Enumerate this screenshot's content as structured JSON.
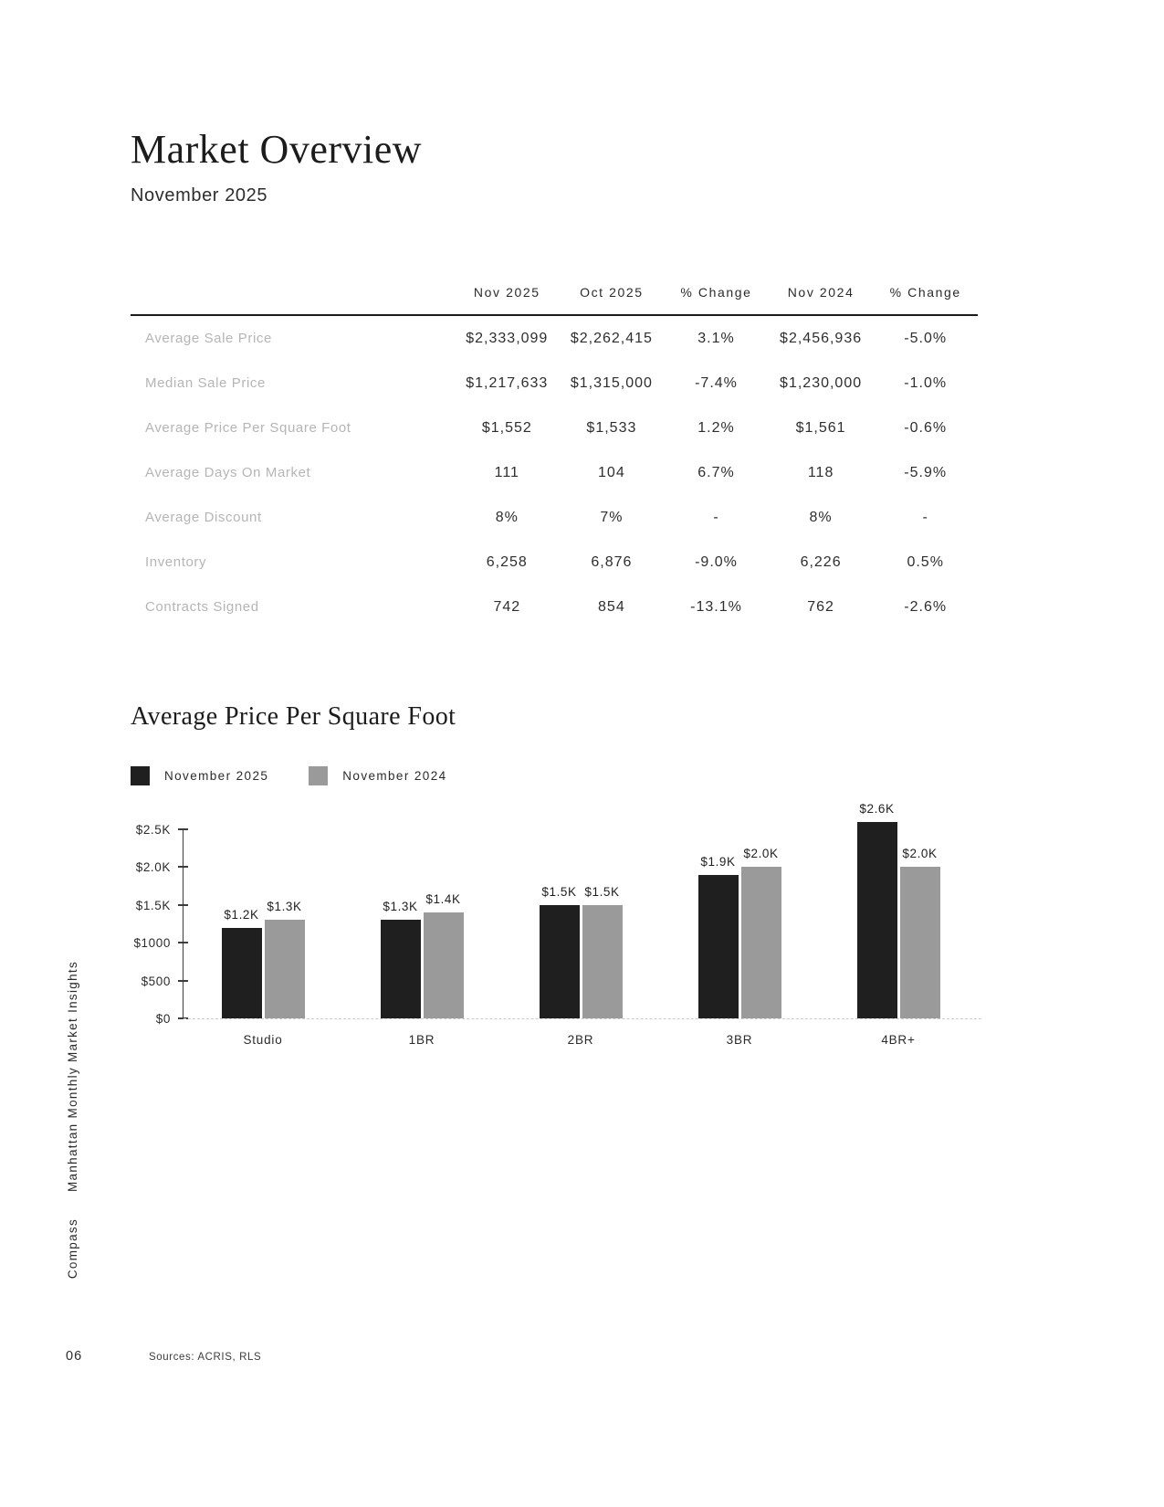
{
  "page": {
    "title": "Market Overview",
    "subtitle": "November 2025",
    "page_number": "06",
    "sources": "Sources: ACRIS, RLS",
    "sidebar_text": "Manhattan Monthly Market Insights",
    "brand": "Compass"
  },
  "table": {
    "columns": [
      "Nov 2025",
      "Oct 2025",
      "% Change",
      "Nov 2024",
      "% Change"
    ],
    "rows": [
      {
        "label": "Average Sale Price",
        "values": [
          "$2,333,099",
          "$2,262,415",
          "3.1%",
          "$2,456,936",
          "-5.0%"
        ]
      },
      {
        "label": "Median Sale Price",
        "values": [
          "$1,217,633",
          "$1,315,000",
          "-7.4%",
          "$1,230,000",
          "-1.0%"
        ]
      },
      {
        "label": "Average Price Per Square Foot",
        "values": [
          "$1,552",
          "$1,533",
          "1.2%",
          "$1,561",
          "-0.6%"
        ]
      },
      {
        "label": "Average Days On Market",
        "values": [
          "111",
          "104",
          "6.7%",
          "118",
          "-5.9%"
        ]
      },
      {
        "label": "Average Discount",
        "values": [
          "8%",
          "7%",
          "-",
          "8%",
          "-"
        ]
      },
      {
        "label": "Inventory",
        "values": [
          "6,258",
          "6,876",
          "-9.0%",
          "6,226",
          "0.5%"
        ]
      },
      {
        "label": "Contracts Signed",
        "values": [
          "742",
          "854",
          "-13.1%",
          "762",
          "-2.6%"
        ]
      }
    ]
  },
  "chart": {
    "title": "Average Price Per Square Foot",
    "chart_data": {
      "type": "bar",
      "categories": [
        "Studio",
        "1BR",
        "2BR",
        "3BR",
        "4BR+"
      ],
      "series": [
        {
          "name": "November 2025",
          "color": "#1f1f1f",
          "values": [
            1200,
            1300,
            1500,
            1900,
            2600
          ],
          "labels": [
            "$1.2K",
            "$1.3K",
            "$1.5K",
            "$1.9K",
            "$2.6K"
          ]
        },
        {
          "name": "November 2024",
          "color": "#9a9a9a",
          "values": [
            1300,
            1400,
            1500,
            2000,
            2000
          ],
          "labels": [
            "$1.3K",
            "$1.4K",
            "$1.5K",
            "$2.0K",
            "$2.0K"
          ]
        }
      ],
      "ytick_values": [
        0,
        500,
        1000,
        1500,
        2000,
        2500
      ],
      "ytick_labels": [
        "$0",
        "$500",
        "$1000",
        "$1.5K",
        "$2.0K",
        "$2.5K"
      ],
      "ylim": [
        0,
        2500
      ],
      "xlabel": "",
      "ylabel": "",
      "legend_position": "top-left",
      "grid": "baseline-dashed-only"
    }
  }
}
